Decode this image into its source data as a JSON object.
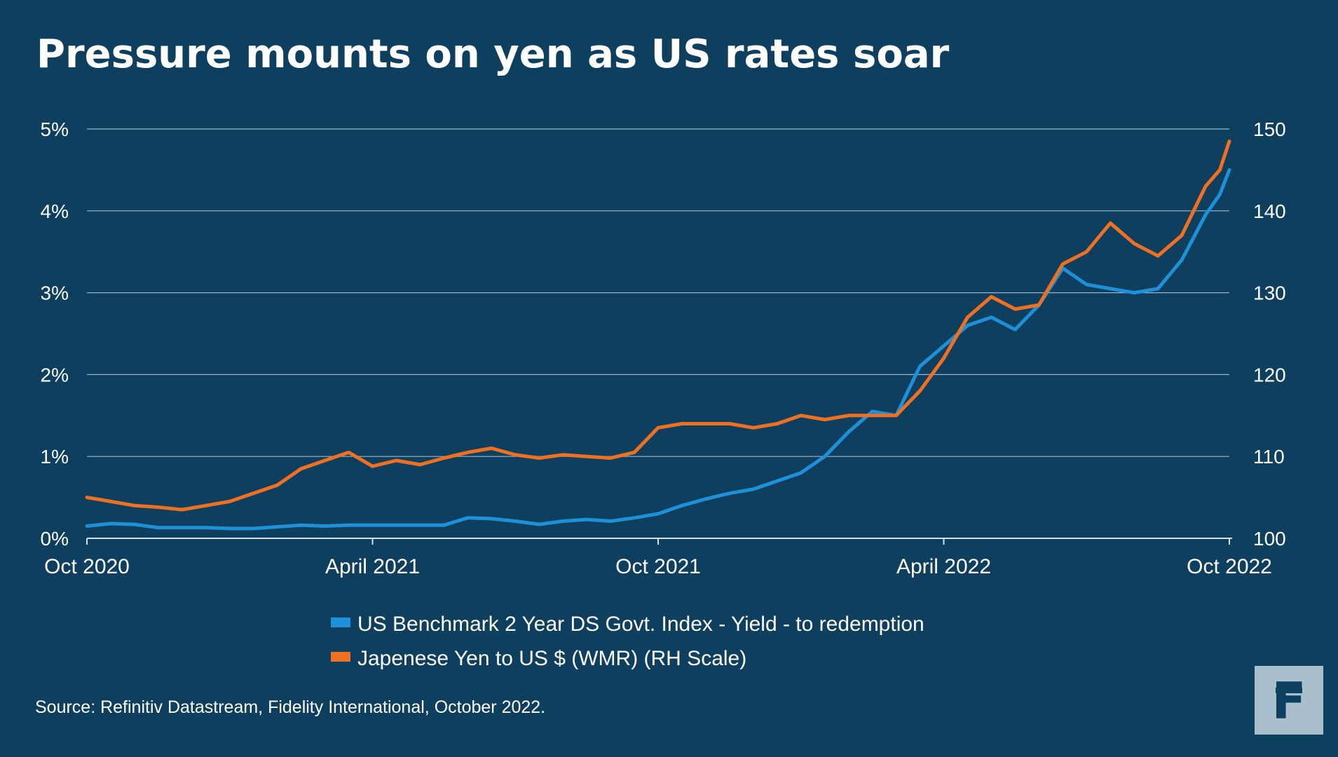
{
  "chart_data": {
    "type": "line",
    "title": "Pressure mounts on yen as US rates soar",
    "x_ticks": [
      {
        "label": "Oct 2020",
        "date": 0
      },
      {
        "label": "April 2021",
        "date": 6
      },
      {
        "label": "Oct 2021",
        "date": 12
      },
      {
        "label": "April 2022",
        "date": 18
      },
      {
        "label": "Oct 2022",
        "date": 24
      }
    ],
    "x_range": [
      0,
      24
    ],
    "y_left": {
      "range": [
        0,
        5
      ],
      "ticks": [
        0,
        1,
        2,
        3,
        4,
        5
      ],
      "labels": [
        "0%",
        "1%",
        "2%",
        "3%",
        "4%",
        "5%"
      ]
    },
    "y_right": {
      "range": [
        100,
        150
      ],
      "ticks": [
        100,
        110,
        120,
        130,
        140,
        150
      ],
      "labels": [
        "100",
        "110",
        "120",
        "130",
        "140",
        "150"
      ]
    },
    "series": [
      {
        "name": "US Benchmark 2 Year DS Govt. Index - Yield - to redemption",
        "axis": "left",
        "color": "#1e90d8",
        "points": [
          [
            0.0,
            0.15
          ],
          [
            0.5,
            0.18
          ],
          [
            1.0,
            0.17
          ],
          [
            1.5,
            0.13
          ],
          [
            2.0,
            0.13
          ],
          [
            2.5,
            0.13
          ],
          [
            3.0,
            0.12
          ],
          [
            3.5,
            0.12
          ],
          [
            4.0,
            0.14
          ],
          [
            4.5,
            0.16
          ],
          [
            5.0,
            0.15
          ],
          [
            5.5,
            0.16
          ],
          [
            6.0,
            0.16
          ],
          [
            6.5,
            0.16
          ],
          [
            7.0,
            0.16
          ],
          [
            7.5,
            0.16
          ],
          [
            8.0,
            0.25
          ],
          [
            8.5,
            0.24
          ],
          [
            9.0,
            0.21
          ],
          [
            9.5,
            0.17
          ],
          [
            10.0,
            0.21
          ],
          [
            10.5,
            0.23
          ],
          [
            11.0,
            0.21
          ],
          [
            11.5,
            0.25
          ],
          [
            12.0,
            0.3
          ],
          [
            12.5,
            0.4
          ],
          [
            13.0,
            0.48
          ],
          [
            13.5,
            0.55
          ],
          [
            14.0,
            0.6
          ],
          [
            14.5,
            0.7
          ],
          [
            15.0,
            0.8
          ],
          [
            15.5,
            1.0
          ],
          [
            16.0,
            1.3
          ],
          [
            16.5,
            1.55
          ],
          [
            17.0,
            1.5
          ],
          [
            17.5,
            2.1
          ],
          [
            18.0,
            2.35
          ],
          [
            18.5,
            2.6
          ],
          [
            19.0,
            2.7
          ],
          [
            19.5,
            2.55
          ],
          [
            20.0,
            2.85
          ],
          [
            20.5,
            3.3
          ],
          [
            21.0,
            3.1
          ],
          [
            21.5,
            3.05
          ],
          [
            22.0,
            3.0
          ],
          [
            22.5,
            3.05
          ],
          [
            23.0,
            3.4
          ],
          [
            23.5,
            3.95
          ],
          [
            23.8,
            4.2
          ],
          [
            24.0,
            4.5
          ]
        ]
      },
      {
        "name": "Japenese Yen to US $ (WMR) (RH Scale)",
        "axis": "right",
        "color": "#ee7023",
        "points": [
          [
            0.0,
            105.0
          ],
          [
            0.5,
            104.5
          ],
          [
            1.0,
            104.0
          ],
          [
            1.5,
            103.8
          ],
          [
            2.0,
            103.5
          ],
          [
            2.5,
            104.0
          ],
          [
            3.0,
            104.5
          ],
          [
            3.5,
            105.5
          ],
          [
            4.0,
            106.5
          ],
          [
            4.5,
            108.5
          ],
          [
            5.0,
            109.5
          ],
          [
            5.5,
            110.5
          ],
          [
            6.0,
            108.8
          ],
          [
            6.5,
            109.5
          ],
          [
            7.0,
            109.0
          ],
          [
            7.5,
            109.8
          ],
          [
            8.0,
            110.5
          ],
          [
            8.5,
            111.0
          ],
          [
            9.0,
            110.2
          ],
          [
            9.5,
            109.8
          ],
          [
            10.0,
            110.2
          ],
          [
            10.5,
            110.0
          ],
          [
            11.0,
            109.8
          ],
          [
            11.5,
            110.5
          ],
          [
            12.0,
            113.5
          ],
          [
            12.5,
            114.0
          ],
          [
            13.0,
            114.0
          ],
          [
            13.5,
            114.0
          ],
          [
            14.0,
            113.5
          ],
          [
            14.5,
            114.0
          ],
          [
            15.0,
            115.0
          ],
          [
            15.5,
            114.5
          ],
          [
            16.0,
            115.0
          ],
          [
            16.5,
            115.0
          ],
          [
            17.0,
            115.0
          ],
          [
            17.5,
            118.0
          ],
          [
            18.0,
            122.0
          ],
          [
            18.5,
            127.0
          ],
          [
            19.0,
            129.5
          ],
          [
            19.5,
            128.0
          ],
          [
            20.0,
            128.5
          ],
          [
            20.5,
            133.5
          ],
          [
            21.0,
            135.0
          ],
          [
            21.5,
            138.5
          ],
          [
            22.0,
            136.0
          ],
          [
            22.5,
            134.5
          ],
          [
            23.0,
            137.0
          ],
          [
            23.5,
            143.0
          ],
          [
            23.8,
            145.0
          ],
          [
            24.0,
            148.5
          ]
        ]
      }
    ],
    "legend_position": "bottom-center"
  },
  "source_text": "Source: Refinitiv Datastream, Fidelity International, October 2022.",
  "logo_text": "F"
}
